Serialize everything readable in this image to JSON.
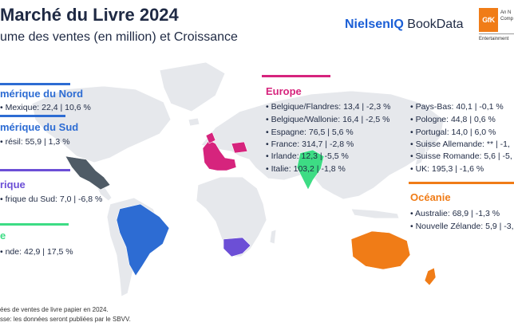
{
  "header": {
    "title": "Marché du Livre 2024",
    "subtitle": "ume des ventes (en million) et Croissance"
  },
  "logos": {
    "nielsen_brand": "NielsenIQ",
    "nielsen_product": "BookData",
    "gfk_mark": "GfK",
    "gfk_tagline_1": "An N",
    "gfk_tagline_2": "Comp",
    "gfk_entertainment": "Entertainment"
  },
  "regions": {
    "north_america": {
      "title": "mérique du Nord",
      "color": "#2d6cd3",
      "items": [
        "Mexique: 22,4 | 10,6 %"
      ]
    },
    "south_america": {
      "title": "mérique du Sud",
      "color": "#2d6cd3",
      "items": [
        "résil: 55,9 | 1,3 %"
      ]
    },
    "africa": {
      "title": "rique",
      "color": "#6c4fd6",
      "items": [
        "frique du Sud: 7,0 | -6,8 %"
      ]
    },
    "asia": {
      "title": "e",
      "color": "#3ddc84",
      "items": [
        "nde: 42,9 | 17,5 %"
      ]
    },
    "europe": {
      "title": "Europe",
      "color": "#d6247d",
      "items_col1": [
        "Belgique/Flandres: 13,4 | -2,3 %",
        "Belgique/Wallonie: 16,4 | -2,5 %",
        "Espagne: 76,5 | 5,6 %",
        "France: 314,7 | -2,8 %",
        "Irlande: 12,3 | -5,5 %",
        "Italie: 103,2 | -1,8 %"
      ],
      "items_col2": [
        "Pays-Bas: 40,1 | -0,1 %",
        "Pologne: 44,8 | 0,6 %",
        "Portugal: 14,0 | 6,0 %",
        "Suisse Allemande: ** | -1,",
        "Suisse Romande: 5,6 | -5,",
        "UK: 195,3 | -1,6 %"
      ]
    },
    "oceania": {
      "title": "Océanie",
      "color": "#f07c17",
      "items": [
        "Australie: 68,9 | -1,3 %",
        "Nouvelle Zélande: 5,9 | -3,"
      ]
    }
  },
  "footnotes": [
    "ées de ventes de livre papier en 2024.",
    "sse: les données seront publiées par le SBVV."
  ],
  "map_colors": {
    "base": "#e6e8ec",
    "mexico": "#4f5b66",
    "brazil": "#2d6cd3",
    "europe": "#d6247d",
    "india": "#3ddc84",
    "south_africa": "#6c4fd6",
    "oceania": "#f07c17"
  }
}
